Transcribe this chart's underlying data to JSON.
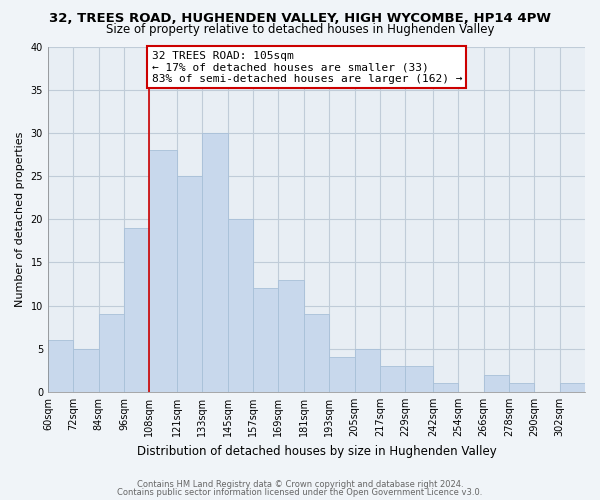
{
  "title": "32, TREES ROAD, HUGHENDEN VALLEY, HIGH WYCOMBE, HP14 4PW",
  "subtitle": "Size of property relative to detached houses in Hughenden Valley",
  "xlabel": "Distribution of detached houses by size in Hughenden Valley",
  "ylabel": "Number of detached properties",
  "bar_color": "#c8d8ec",
  "bar_edge_color": "#a8c0d8",
  "bins": [
    "60sqm",
    "72sqm",
    "84sqm",
    "96sqm",
    "108sqm",
    "121sqm",
    "133sqm",
    "145sqm",
    "157sqm",
    "169sqm",
    "181sqm",
    "193sqm",
    "205sqm",
    "217sqm",
    "229sqm",
    "242sqm",
    "254sqm",
    "266sqm",
    "278sqm",
    "290sqm",
    "302sqm"
  ],
  "values": [
    6,
    5,
    9,
    19,
    28,
    25,
    30,
    20,
    12,
    13,
    9,
    4,
    5,
    3,
    3,
    1,
    0,
    2,
    1,
    0,
    1
  ],
  "bin_edges_numeric": [
    60,
    72,
    84,
    96,
    108,
    121,
    133,
    145,
    157,
    169,
    181,
    193,
    205,
    217,
    229,
    242,
    254,
    266,
    278,
    290,
    302
  ],
  "bin_widths": [
    12,
    12,
    12,
    12,
    13,
    12,
    12,
    12,
    12,
    12,
    12,
    12,
    12,
    12,
    13,
    12,
    12,
    12,
    12,
    12,
    12
  ],
  "red_line_x": 108,
  "ylim": [
    0,
    40
  ],
  "annotation_text": "32 TREES ROAD: 105sqm\n← 17% of detached houses are smaller (33)\n83% of semi-detached houses are larger (162) →",
  "annotation_box_edge_color": "#cc0000",
  "annotation_box_face_color": "#ffffff",
  "footer1": "Contains HM Land Registry data © Crown copyright and database right 2024.",
  "footer2": "Contains public sector information licensed under the Open Government Licence v3.0.",
  "background_color": "#f0f4f8",
  "plot_bg_color": "#e8eef4",
  "grid_color": "#c0ccd8",
  "title_fontsize": 9.5,
  "subtitle_fontsize": 8.5,
  "xlabel_fontsize": 8.5,
  "ylabel_fontsize": 8,
  "tick_fontsize": 7,
  "footer_fontsize": 6,
  "annotation_fontsize": 8
}
